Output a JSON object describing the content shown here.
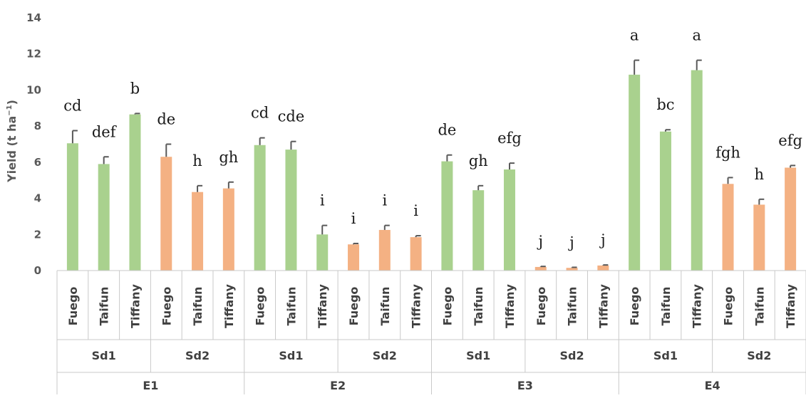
{
  "chart_data": {
    "type": "bar",
    "ylabel": "Yield (t ha",
    "ylabel_sup": "−1",
    "ylabel_close": ")",
    "ylim": [
      0,
      14
    ],
    "yticks": [
      0,
      2,
      4,
      6,
      8,
      10,
      12,
      14
    ],
    "grid": false,
    "colors": {
      "Sd1": "#a9d18e",
      "Sd2": "#f4b183",
      "error_bar": "#595959"
    },
    "environments": [
      "E1",
      "E2",
      "E3",
      "E4"
    ],
    "densities": [
      "Sd1",
      "Sd2"
    ],
    "cultivars": [
      "Fuego",
      "Taifun",
      "Tiffany"
    ],
    "bars": [
      {
        "env": "E1",
        "density": "Sd1",
        "cultivar": "Fuego",
        "value": 7.05,
        "err": 0.7,
        "label": "cd"
      },
      {
        "env": "E1",
        "density": "Sd1",
        "cultivar": "Taifun",
        "value": 5.9,
        "err": 0.4,
        "label": "def"
      },
      {
        "env": "E1",
        "density": "Sd1",
        "cultivar": "Tiffany",
        "value": 8.65,
        "err": 0.05,
        "label": "b"
      },
      {
        "env": "E1",
        "density": "Sd2",
        "cultivar": "Fuego",
        "value": 6.3,
        "err": 0.7,
        "label": "de"
      },
      {
        "env": "E1",
        "density": "Sd2",
        "cultivar": "Taifun",
        "value": 4.35,
        "err": 0.35,
        "label": "h"
      },
      {
        "env": "E1",
        "density": "Sd2",
        "cultivar": "Tiffany",
        "value": 4.55,
        "err": 0.35,
        "label": "gh"
      },
      {
        "env": "E2",
        "density": "Sd1",
        "cultivar": "Fuego",
        "value": 6.95,
        "err": 0.4,
        "label": "cd"
      },
      {
        "env": "E2",
        "density": "Sd1",
        "cultivar": "Taifun",
        "value": 6.7,
        "err": 0.45,
        "label": "cde"
      },
      {
        "env": "E2",
        "density": "Sd1",
        "cultivar": "Tiffany",
        "value": 2.0,
        "err": 0.5,
        "label": "i"
      },
      {
        "env": "E2",
        "density": "Sd2",
        "cultivar": "Fuego",
        "value": 1.45,
        "err": 0.05,
        "label": "i"
      },
      {
        "env": "E2",
        "density": "Sd2",
        "cultivar": "Taifun",
        "value": 2.25,
        "err": 0.25,
        "label": "i"
      },
      {
        "env": "E2",
        "density": "Sd2",
        "cultivar": "Tiffany",
        "value": 1.85,
        "err": 0.08,
        "label": "i"
      },
      {
        "env": "E3",
        "density": "Sd1",
        "cultivar": "Fuego",
        "value": 6.05,
        "err": 0.35,
        "label": "de"
      },
      {
        "env": "E3",
        "density": "Sd1",
        "cultivar": "Taifun",
        "value": 4.45,
        "err": 0.25,
        "label": "gh"
      },
      {
        "env": "E3",
        "density": "Sd1",
        "cultivar": "Tiffany",
        "value": 5.6,
        "err": 0.35,
        "label": "efg"
      },
      {
        "env": "E3",
        "density": "Sd2",
        "cultivar": "Fuego",
        "value": 0.2,
        "err": 0.03,
        "label": "j"
      },
      {
        "env": "E3",
        "density": "Sd2",
        "cultivar": "Taifun",
        "value": 0.15,
        "err": 0.03,
        "label": "j"
      },
      {
        "env": "E3",
        "density": "Sd2",
        "cultivar": "Tiffany",
        "value": 0.28,
        "err": 0.03,
        "label": "j"
      },
      {
        "env": "E4",
        "density": "Sd1",
        "cultivar": "Fuego",
        "value": 10.85,
        "err": 0.8,
        "label": "a"
      },
      {
        "env": "E4",
        "density": "Sd1",
        "cultivar": "Taifun",
        "value": 7.7,
        "err": 0.1,
        "label": "bc"
      },
      {
        "env": "E4",
        "density": "Sd1",
        "cultivar": "Tiffany",
        "value": 11.1,
        "err": 0.55,
        "label": "a"
      },
      {
        "env": "E4",
        "density": "Sd2",
        "cultivar": "Fuego",
        "value": 4.8,
        "err": 0.35,
        "label": "fgh"
      },
      {
        "env": "E4",
        "density": "Sd2",
        "cultivar": "Taifun",
        "value": 3.65,
        "err": 0.3,
        "label": "h"
      },
      {
        "env": "E4",
        "density": "Sd2",
        "cultivar": "Tiffany",
        "value": 5.7,
        "err": 0.12,
        "label": "efg"
      }
    ]
  }
}
